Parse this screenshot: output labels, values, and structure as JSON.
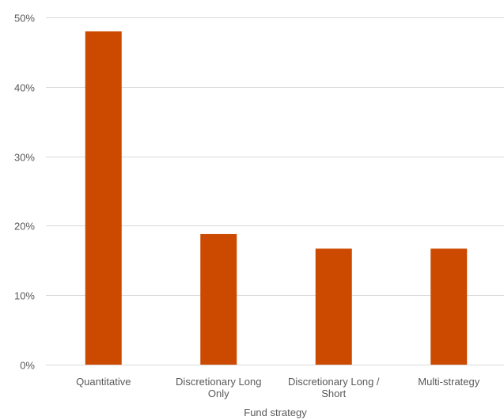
{
  "chart_data": {
    "type": "bar",
    "title": "",
    "xlabel": "Fund strategy",
    "ylabel": "",
    "categories": [
      [
        "Quantitative"
      ],
      [
        "Discretionary Long",
        "Only"
      ],
      [
        "Discretionary Long /",
        "Short"
      ],
      [
        "Multi-strategy"
      ]
    ],
    "values": [
      48,
      18.8,
      16.7,
      16.7
    ],
    "ylim": [
      0,
      50
    ],
    "yticks": [
      0,
      10,
      20,
      30,
      40,
      50
    ],
    "ytick_labels": [
      "0%",
      "10%",
      "20%",
      "30%",
      "40%",
      "50%"
    ],
    "grid": true,
    "legend": "none",
    "colors": {
      "bar": "#CC4A00",
      "grid": "#D9D9D9",
      "text": "#595959"
    }
  }
}
